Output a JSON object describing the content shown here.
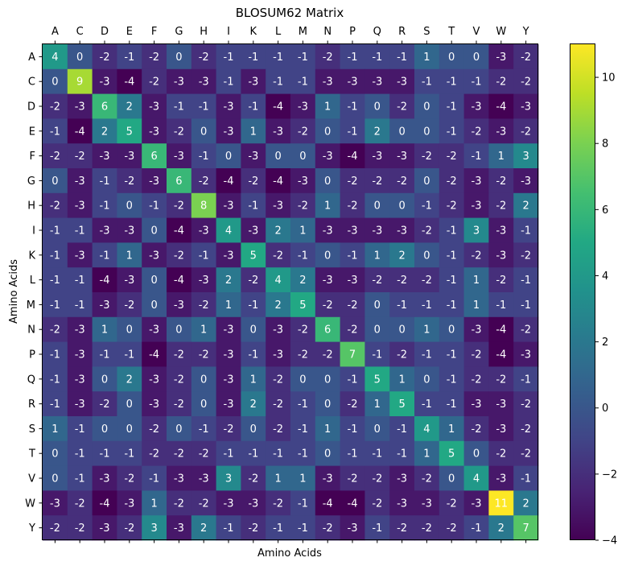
{
  "chart_data": {
    "type": "heatmap",
    "title": "BLOSUM62 Matrix",
    "xlabel": "Amino Acids",
    "ylabel": "Amino Acids",
    "x_categories": [
      "A",
      "C",
      "D",
      "E",
      "F",
      "G",
      "H",
      "I",
      "K",
      "L",
      "M",
      "N",
      "P",
      "Q",
      "R",
      "S",
      "T",
      "V",
      "W",
      "Y"
    ],
    "y_categories": [
      "A",
      "C",
      "D",
      "E",
      "F",
      "G",
      "H",
      "I",
      "K",
      "L",
      "M",
      "N",
      "P",
      "Q",
      "R",
      "S",
      "T",
      "V",
      "W",
      "Y"
    ],
    "values": [
      [
        4,
        0,
        -2,
        -1,
        -2,
        0,
        -2,
        -1,
        -1,
        -1,
        -1,
        -2,
        -1,
        -1,
        -1,
        1,
        0,
        0,
        -3,
        -2
      ],
      [
        0,
        9,
        -3,
        -4,
        -2,
        -3,
        -3,
        -1,
        -3,
        -1,
        -1,
        -3,
        -3,
        -3,
        -3,
        -1,
        -1,
        -1,
        -2,
        -2
      ],
      [
        -2,
        -3,
        6,
        2,
        -3,
        -1,
        -1,
        -3,
        -1,
        -4,
        -3,
        1,
        -1,
        0,
        -2,
        0,
        -1,
        -3,
        -4,
        -3
      ],
      [
        -1,
        -4,
        2,
        5,
        -3,
        -2,
        0,
        -3,
        1,
        -3,
        -2,
        0,
        -1,
        2,
        0,
        0,
        -1,
        -2,
        -3,
        -2
      ],
      [
        -2,
        -2,
        -3,
        -3,
        6,
        -3,
        -1,
        0,
        -3,
        0,
        0,
        -3,
        -4,
        -3,
        -3,
        -2,
        -2,
        -1,
        1,
        3
      ],
      [
        0,
        -3,
        -1,
        -2,
        -3,
        6,
        -2,
        -4,
        -2,
        -4,
        -3,
        0,
        -2,
        -2,
        -2,
        0,
        -2,
        -3,
        -2,
        -3
      ],
      [
        -2,
        -3,
        -1,
        0,
        -1,
        -2,
        8,
        -3,
        -1,
        -3,
        -2,
        1,
        -2,
        0,
        0,
        -1,
        -2,
        -3,
        -2,
        2
      ],
      [
        -1,
        -1,
        -3,
        -3,
        0,
        -4,
        -3,
        4,
        -3,
        2,
        1,
        -3,
        -3,
        -3,
        -3,
        -2,
        -1,
        3,
        -3,
        -1
      ],
      [
        -1,
        -3,
        -1,
        1,
        -3,
        -2,
        -1,
        -3,
        5,
        -2,
        -1,
        0,
        -1,
        1,
        2,
        0,
        -1,
        -2,
        -3,
        -2
      ],
      [
        -1,
        -1,
        -4,
        -3,
        0,
        -4,
        -3,
        2,
        -2,
        4,
        2,
        -3,
        -3,
        -2,
        -2,
        -2,
        -1,
        1,
        -2,
        -1
      ],
      [
        -1,
        -1,
        -3,
        -2,
        0,
        -3,
        -2,
        1,
        -1,
        2,
        5,
        -2,
        -2,
        0,
        -1,
        -1,
        -1,
        1,
        -1,
        -1
      ],
      [
        -2,
        -3,
        1,
        0,
        -3,
        0,
        1,
        -3,
        0,
        -3,
        -2,
        6,
        -2,
        0,
        0,
        1,
        0,
        -3,
        -4,
        -2
      ],
      [
        -1,
        -3,
        -1,
        -1,
        -4,
        -2,
        -2,
        -3,
        -1,
        -3,
        -2,
        -2,
        7,
        -1,
        -2,
        -1,
        -1,
        -2,
        -4,
        -3
      ],
      [
        -1,
        -3,
        0,
        2,
        -3,
        -2,
        0,
        -3,
        1,
        -2,
        0,
        0,
        -1,
        5,
        1,
        0,
        -1,
        -2,
        -2,
        -1
      ],
      [
        -1,
        -3,
        -2,
        0,
        -3,
        -2,
        0,
        -3,
        2,
        -2,
        -1,
        0,
        -2,
        1,
        5,
        -1,
        -1,
        -3,
        -3,
        -2
      ],
      [
        1,
        -1,
        0,
        0,
        -2,
        0,
        -1,
        -2,
        0,
        -2,
        -1,
        1,
        -1,
        0,
        -1,
        4,
        1,
        -2,
        -3,
        -2
      ],
      [
        0,
        -1,
        -1,
        -1,
        -2,
        -2,
        -2,
        -1,
        -1,
        -1,
        -1,
        0,
        -1,
        -1,
        -1,
        1,
        5,
        0,
        -2,
        -2
      ],
      [
        0,
        -1,
        -3,
        -2,
        -1,
        -3,
        -3,
        3,
        -2,
        1,
        1,
        -3,
        -2,
        -2,
        -3,
        -2,
        0,
        4,
        -3,
        -1
      ],
      [
        -3,
        -2,
        -4,
        -3,
        1,
        -2,
        -2,
        -3,
        -3,
        -2,
        -1,
        -4,
        -4,
        -2,
        -3,
        -3,
        -2,
        -3,
        11,
        2
      ],
      [
        -2,
        -2,
        -3,
        -2,
        3,
        -3,
        2,
        -1,
        -2,
        -1,
        -1,
        -2,
        -3,
        -1,
        -2,
        -2,
        -2,
        -1,
        2,
        7
      ]
    ],
    "colormap": "viridis",
    "vmin": -4,
    "vmax": 11,
    "colorbar_ticks": [
      -4,
      -2,
      0,
      2,
      4,
      6,
      8,
      10
    ],
    "colorbar_tick_labels": [
      "−4",
      "−2",
      "0",
      "2",
      "4",
      "6",
      "8",
      "10"
    ],
    "x_ticks_position": "top",
    "grid": false
  }
}
